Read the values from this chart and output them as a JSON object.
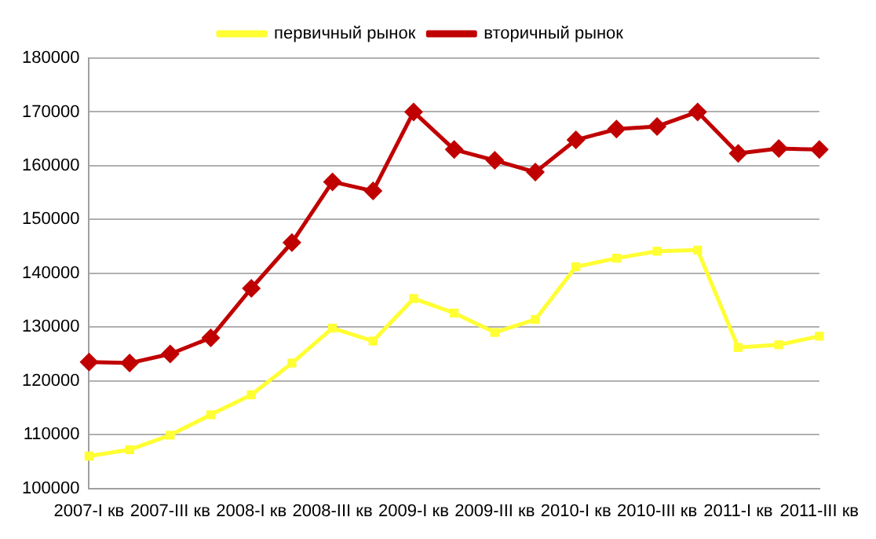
{
  "chart_data": {
    "type": "line",
    "categories": [
      "2007-I кв",
      null,
      "2007-III кв",
      null,
      "2008-I кв",
      null,
      "2008-III кв",
      null,
      "2009-I кв",
      null,
      "2009-III кв",
      null,
      "2010-I кв",
      null,
      "2010-III кв",
      null,
      "2011-I кв",
      null,
      "2011-III кв"
    ],
    "series": [
      {
        "name": "первичный рынок",
        "color": "#ffff33",
        "marker": "square",
        "values": [
          106000,
          107200,
          109900,
          113700,
          117400,
          123300,
          129800,
          127400,
          135300,
          132600,
          129000,
          131400,
          141200,
          142800,
          144100,
          144300,
          126200,
          126700,
          128300
        ]
      },
      {
        "name": "вторичный рынок",
        "color": "#c00000",
        "marker": "diamond",
        "values": [
          123500,
          123300,
          125000,
          128000,
          137200,
          145700,
          157000,
          155300,
          170000,
          163000,
          161000,
          158800,
          164800,
          166800,
          167300,
          170000,
          162300,
          163200,
          163000
        ]
      }
    ],
    "ylim": [
      100000,
      180000
    ],
    "yticks": [
      100000,
      110000,
      120000,
      130000,
      140000,
      150000,
      160000,
      170000,
      180000
    ],
    "grid": "y",
    "legend": "top"
  }
}
